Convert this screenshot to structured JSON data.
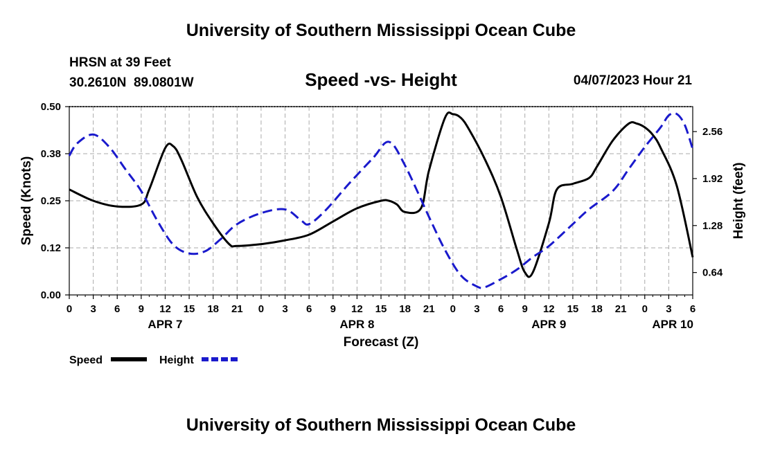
{
  "header": {
    "title": "University of Southern Mississippi Ocean Cube",
    "station": "HRSN at 39 Feet",
    "location": "30.2610N  89.0801W",
    "subtitle": "Speed -vs- Height",
    "datetime": "04/07/2023 Hour 21"
  },
  "footer": {
    "title": "University of Southern Mississippi Ocean Cube"
  },
  "colors": {
    "speed": "#000000",
    "height": "#1a1acc",
    "grid": "#aaaaaa"
  },
  "chart_data": {
    "type": "line",
    "title": "Speed -vs- Height",
    "xlabel": "Forecast (Z)",
    "ylabel": "Speed (Knots)",
    "y2label": "Height (feet)",
    "xlim": [
      0,
      78
    ],
    "ylim": [
      0,
      0.5
    ],
    "y2lim": [
      0.335,
      2.9
    ],
    "x_ticks": [
      0,
      3,
      6,
      9,
      12,
      15,
      18,
      21,
      24,
      27,
      30,
      33,
      36,
      39,
      42,
      45,
      48,
      51,
      54,
      57,
      60,
      63,
      66,
      69,
      72,
      75,
      78
    ],
    "x_tick_labels": [
      "0",
      "3",
      "6",
      "9",
      "12",
      "15",
      "18",
      "21",
      "0",
      "3",
      "6",
      "9",
      "12",
      "15",
      "18",
      "21",
      "0",
      "3",
      "6",
      "9",
      "12",
      "15",
      "18",
      "21",
      "0",
      "3",
      "6"
    ],
    "date_labels": [
      {
        "x": 12,
        "label": "APR 7"
      },
      {
        "x": 36,
        "label": "APR 8"
      },
      {
        "x": 60,
        "label": "APR 9"
      },
      {
        "x": 75.5,
        "label": "APR 10"
      }
    ],
    "y_ticks": [
      0.0,
      0.125,
      0.25,
      0.375,
      0.5
    ],
    "y_tick_labels": [
      "0.00",
      "0.12",
      "0.25",
      "0.38",
      "0.50"
    ],
    "y2_ticks": [
      0.64,
      1.28,
      1.92,
      2.56
    ],
    "y2_tick_labels": [
      "0.64",
      "1.28",
      "1.92",
      "2.56"
    ],
    "grid": true,
    "legend": {
      "position": "bottom-left",
      "entries": [
        "Speed",
        "Height"
      ]
    },
    "series": [
      {
        "name": "Speed",
        "axis": "left",
        "style": "solid",
        "x": [
          0,
          3,
          6,
          9,
          10,
          12,
          13,
          14,
          16,
          18,
          20,
          21,
          24,
          27,
          30,
          33,
          36,
          39,
          40,
          41,
          42,
          44,
          45,
          47,
          48,
          49,
          50,
          52,
          54,
          56,
          57,
          58,
          60,
          61,
          63,
          65,
          66,
          68,
          70,
          71,
          72,
          73,
          74,
          76,
          78
        ],
        "y": [
          0.28,
          0.25,
          0.235,
          0.24,
          0.28,
          0.39,
          0.395,
          0.36,
          0.26,
          0.19,
          0.135,
          0.13,
          0.135,
          0.145,
          0.16,
          0.195,
          0.23,
          0.25,
          0.25,
          0.24,
          0.22,
          0.23,
          0.33,
          0.47,
          0.48,
          0.47,
          0.44,
          0.36,
          0.26,
          0.12,
          0.06,
          0.06,
          0.19,
          0.28,
          0.295,
          0.31,
          0.34,
          0.41,
          0.455,
          0.455,
          0.445,
          0.425,
          0.39,
          0.29,
          0.1
        ]
      },
      {
        "name": "Height",
        "axis": "right",
        "style": "dashed",
        "x": [
          0,
          1,
          3,
          5,
          7,
          9,
          11,
          13,
          15,
          17,
          19,
          21,
          24,
          27,
          29,
          30,
          32,
          35,
          38,
          40,
          42,
          45,
          47,
          49,
          51,
          52,
          54,
          56,
          58,
          60,
          63,
          65,
          68,
          70,
          72,
          74,
          75,
          76,
          77,
          78
        ],
        "y": [
          2.23,
          2.4,
          2.52,
          2.35,
          2.05,
          1.75,
          1.35,
          1.02,
          0.9,
          0.93,
          1.1,
          1.3,
          1.45,
          1.5,
          1.35,
          1.3,
          1.48,
          1.85,
          2.2,
          2.42,
          2.1,
          1.4,
          0.95,
          0.6,
          0.45,
          0.44,
          0.55,
          0.68,
          0.85,
          1.0,
          1.3,
          1.5,
          1.75,
          2.05,
          2.35,
          2.62,
          2.78,
          2.8,
          2.65,
          2.32
        ]
      }
    ]
  }
}
